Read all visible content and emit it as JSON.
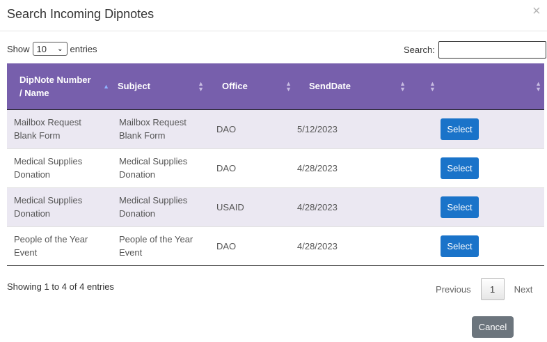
{
  "modal": {
    "title": "Search Incoming Dipnotes",
    "close_glyph": "×"
  },
  "controls": {
    "show_label": "Show",
    "entries_label": "entries",
    "page_length": "10",
    "search_label": "Search:",
    "search_value": ""
  },
  "table": {
    "headers": [
      "DipNote Number / Name",
      "Subject",
      "Office",
      "SendDate",
      ""
    ],
    "rows": [
      {
        "name": "Mailbox Request Blank Form",
        "subject": "Mailbox Request Blank Form",
        "office": "DAO",
        "send_date": "5/12/2023",
        "action": "Select"
      },
      {
        "name": "Medical Supplies Donation",
        "subject": "Medical Supplies Donation",
        "office": "DAO",
        "send_date": "4/28/2023",
        "action": "Select"
      },
      {
        "name": "Medical Supplies Donation",
        "subject": "Medical Supplies Donation",
        "office": "USAID",
        "send_date": "4/28/2023",
        "action": "Select"
      },
      {
        "name": "People of the Year Event",
        "subject": "People of the Year Event",
        "office": "DAO",
        "send_date": "4/28/2023",
        "action": "Select"
      }
    ]
  },
  "footer": {
    "info": "Showing 1 to 4 of 4 entries",
    "previous": "Previous",
    "current_page": "1",
    "next": "Next",
    "cancel": "Cancel"
  },
  "colors": {
    "header_bg": "#775fac",
    "odd_row_bg": "#ebe8f2",
    "select_button": "#1a73c9",
    "cancel_button": "#6c757d"
  }
}
